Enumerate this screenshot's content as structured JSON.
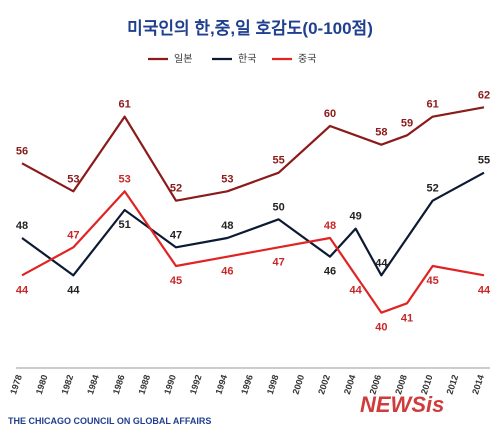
{
  "chart_data": {
    "type": "line",
    "title": "미국인의 한,중,일 호감도(0-100점)",
    "x_ticks": [
      "1978",
      "1980",
      "1982",
      "1984",
      "1986",
      "1988",
      "1990",
      "1992",
      "1994",
      "1996",
      "1998",
      "2000",
      "2002",
      "2004",
      "2006",
      "2008",
      "2010",
      "2012",
      "2014"
    ],
    "series": [
      {
        "name": "일본",
        "color": "#8b1a1a",
        "label_color": "#8b1a1a",
        "label_position": "above",
        "points": [
          {
            "x": 1978,
            "y": 56
          },
          {
            "x": 1982,
            "y": 53
          },
          {
            "x": 1986,
            "y": 61
          },
          {
            "x": 1990,
            "y": 52
          },
          {
            "x": 1994,
            "y": 53
          },
          {
            "x": 1998,
            "y": 55
          },
          {
            "x": 2002,
            "y": 60
          },
          {
            "x": 2006,
            "y": 58
          },
          {
            "x": 2008,
            "y": 59
          },
          {
            "x": 2010,
            "y": 61
          },
          {
            "x": 2014,
            "y": 62
          }
        ]
      },
      {
        "name": "한국",
        "color": "#0d1a33",
        "label_color": "#222222",
        "label_position": "mixed",
        "points": [
          {
            "x": 1978,
            "y": 48,
            "label": "above"
          },
          {
            "x": 1982,
            "y": 44,
            "label": "below"
          },
          {
            "x": 1986,
            "y": 51,
            "label": "below"
          },
          {
            "x": 1990,
            "y": 47,
            "label": "above"
          },
          {
            "x": 1994,
            "y": 48,
            "label": "above"
          },
          {
            "x": 1998,
            "y": 50,
            "label": "above"
          },
          {
            "x": 2002,
            "y": 46,
            "label": "below"
          },
          {
            "x": 2004,
            "y": 49,
            "label": "above"
          },
          {
            "x": 2006,
            "y": 44,
            "label": "above"
          },
          {
            "x": 2010,
            "y": 52,
            "label": "above"
          },
          {
            "x": 2014,
            "y": 55,
            "label": "above"
          }
        ]
      },
      {
        "name": "중국",
        "color": "#e02424",
        "label_color": "#c62828",
        "label_position": "mixed",
        "points": [
          {
            "x": 1978,
            "y": 44,
            "label": "below"
          },
          {
            "x": 1982,
            "y": 47,
            "label": "above"
          },
          {
            "x": 1986,
            "y": 53,
            "label": "above"
          },
          {
            "x": 1990,
            "y": 45,
            "label": "below"
          },
          {
            "x": 1994,
            "y": 46,
            "label": "below"
          },
          {
            "x": 1998,
            "y": 47,
            "label": "below"
          },
          {
            "x": 2002,
            "y": 48,
            "label": "above"
          },
          {
            "x": 2004,
            "y": 44,
            "label": "below"
          },
          {
            "x": 2006,
            "y": 40,
            "label": "below"
          },
          {
            "x": 2008,
            "y": 41,
            "label": "below"
          },
          {
            "x": 2010,
            "y": 45,
            "label": "below"
          },
          {
            "x": 2014,
            "y": 44,
            "label": "below"
          }
        ]
      }
    ],
    "xlim": [
      1978,
      2014
    ],
    "ylim": [
      36,
      66
    ],
    "grid": false,
    "legend_placement": "top"
  },
  "source": "THE CHICAGO COUNCIL ON GLOBAL AFFAIRS",
  "watermark": "NEWSis"
}
